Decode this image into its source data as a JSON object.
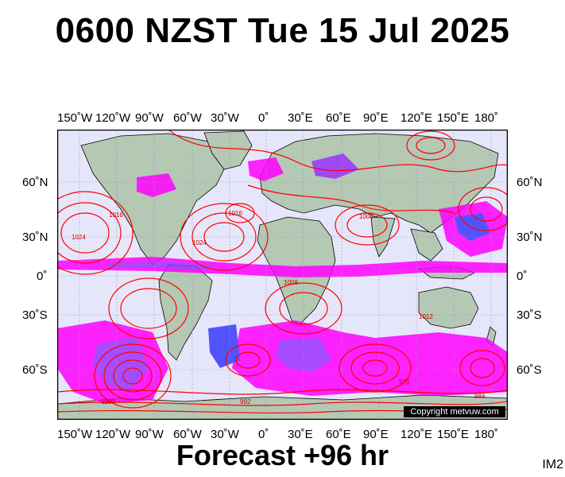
{
  "header": {
    "title": "0600 NZST Tue 15 Jul 2025"
  },
  "footer": {
    "label": "Forecast +96 hr",
    "corner_label": "IM2"
  },
  "map": {
    "copyright": "Copyright metvuw.com",
    "lon_labels": [
      "150˚W",
      "120˚W",
      "90˚W",
      "60˚W",
      "30˚W",
      "0˚",
      "30˚E",
      "60˚E",
      "90˚E",
      "120˚E",
      "150˚E",
      "180˚"
    ],
    "lat_labels": [
      "60˚N",
      "30˚N",
      "0˚",
      "30˚S",
      "60˚S"
    ],
    "isobar_labels": [
      "1024",
      "1016",
      "1008",
      "1000",
      "992",
      "984",
      "976",
      "1012"
    ],
    "colors": {
      "ocean": "#e6e6fa",
      "land": "#b4c8b4",
      "isobar": "#ff0000",
      "precip_magenta": "#ff00ff",
      "precip_purple": "#9b30ff",
      "precip_blue": "#3a3aff"
    }
  }
}
